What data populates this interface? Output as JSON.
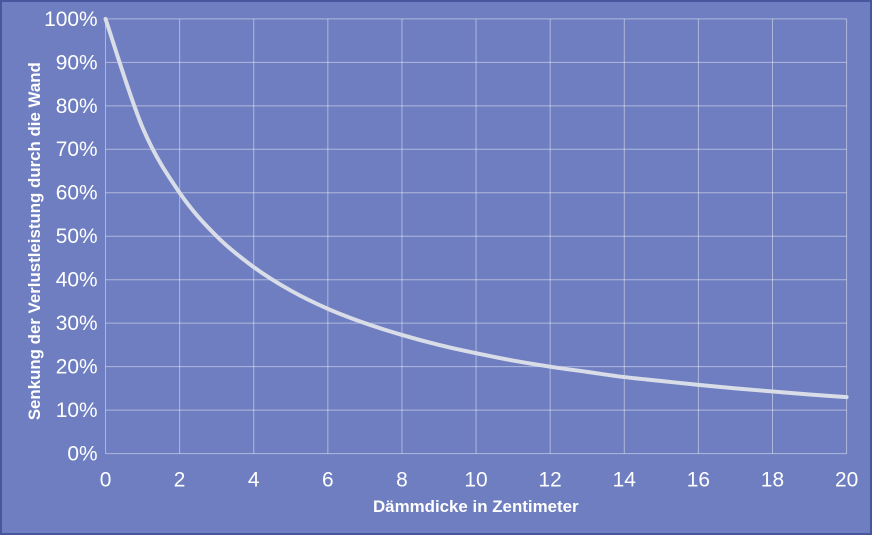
{
  "frame": {
    "background_color": "#6e7ec0",
    "border_color": "#47579e"
  },
  "chart_data": {
    "type": "line",
    "title": "",
    "xlabel": "Dämmdicke in Zentimeter",
    "ylabel": "Senkung der Verlustleistung durch die Wand",
    "x": [
      0,
      1,
      2,
      3,
      4,
      5,
      6,
      7,
      8,
      9,
      10,
      11,
      12,
      13,
      14,
      15,
      16,
      17,
      18,
      19,
      20
    ],
    "y_percent": [
      100,
      75,
      60,
      50,
      42.9,
      37.5,
      33.3,
      30,
      27.3,
      25,
      23.1,
      21.4,
      20,
      18.8,
      17.6,
      16.7,
      15.8,
      15,
      14.3,
      13.6,
      13
    ],
    "xlim": [
      0,
      20
    ],
    "ylim": [
      0,
      100
    ],
    "x_ticks": [
      0,
      2,
      4,
      6,
      8,
      10,
      12,
      14,
      16,
      18,
      20
    ],
    "y_ticks": [
      0,
      10,
      20,
      30,
      40,
      50,
      60,
      70,
      80,
      90,
      100
    ],
    "y_tick_suffix": "%",
    "grid": "on",
    "legend": "none",
    "styles": {
      "line_color": "#d9dde8",
      "line_width": 4,
      "grid_color": "rgba(255,255,255,0.45)",
      "text_color": "#ffffff"
    }
  }
}
